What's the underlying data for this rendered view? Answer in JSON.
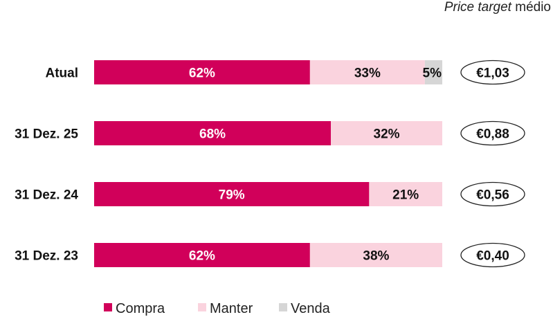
{
  "header": {
    "price_target_italic": "Price target",
    "price_target_rest": " médio"
  },
  "colors": {
    "compra": "#d1005a",
    "manter": "#fad3de",
    "venda": "#d6d6d6"
  },
  "chart_data": {
    "type": "bar",
    "orientation": "horizontal",
    "stacked": true,
    "categories": [
      "Atual",
      "31 Dez. 25",
      "31 Dez. 24",
      "31 Dez. 23"
    ],
    "series": [
      {
        "name": "Compra",
        "values": [
          62,
          68,
          79,
          62
        ],
        "labels": [
          "62%",
          "68%",
          "79%",
          "62%"
        ],
        "color": "#d1005a"
      },
      {
        "name": "Manter",
        "values": [
          33,
          32,
          21,
          38
        ],
        "labels": [
          "33%",
          "32%",
          "21%",
          "38%"
        ],
        "color": "#fad3de"
      },
      {
        "name": "Venda",
        "values": [
          5,
          0,
          0,
          0
        ],
        "labels": [
          "5%",
          "",
          "",
          ""
        ],
        "color": "#d6d6d6"
      }
    ],
    "price_targets": [
      "€1,03",
      "€0,88",
      "€0,56",
      "€0,40"
    ],
    "xlim": [
      0,
      100
    ],
    "legend": {
      "position": "bottom",
      "entries": [
        "Compra",
        "Manter",
        "Venda"
      ]
    },
    "grid": false
  }
}
